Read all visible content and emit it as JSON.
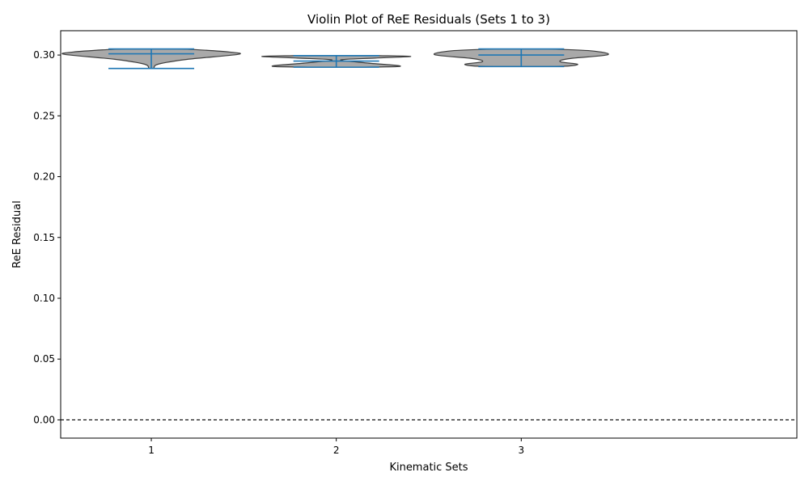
{
  "chart_data": {
    "type": "violin",
    "title": "Violin Plot of ReE Residuals (Sets 1 to 3)",
    "xlabel": "Kinematic Sets",
    "ylabel": "ReE Residual",
    "categories": [
      "1",
      "2",
      "3"
    ],
    "ylim": [
      -0.015,
      0.32
    ],
    "yticks": [
      "0.00",
      "0.05",
      "0.10",
      "0.15",
      "0.20",
      "0.25",
      "0.30"
    ],
    "reference_line": {
      "y": 0.0,
      "style": "dashed",
      "color": "#000000"
    },
    "violins": [
      {
        "category": "1",
        "min": 0.289,
        "max": 0.305,
        "mean": 0.301,
        "density": [
          [
            0.289,
            0.03
          ],
          [
            0.2925,
            0.08
          ],
          [
            0.2965,
            0.42
          ],
          [
            0.3005,
            1.0
          ],
          [
            0.3025,
            0.9
          ],
          [
            0.3045,
            0.5
          ],
          [
            0.305,
            0.3
          ]
        ]
      },
      {
        "category": "2",
        "min": 0.29,
        "max": 0.2995,
        "mean": 0.295,
        "density": [
          [
            0.29,
            0.3
          ],
          [
            0.2905,
            0.7
          ],
          [
            0.2915,
            0.69
          ],
          [
            0.2935,
            0.35
          ],
          [
            0.296,
            0.05
          ],
          [
            0.2975,
            0.45
          ],
          [
            0.2988,
            0.86
          ],
          [
            0.2995,
            0.5
          ]
        ]
      },
      {
        "category": "3",
        "min": 0.2905,
        "max": 0.305,
        "mean": 0.3,
        "density": [
          [
            0.2905,
            0.3
          ],
          [
            0.291,
            0.55
          ],
          [
            0.2925,
            0.65
          ],
          [
            0.2945,
            0.45
          ],
          [
            0.297,
            0.55
          ],
          [
            0.3003,
            1.0
          ],
          [
            0.3035,
            0.8
          ],
          [
            0.305,
            0.3
          ]
        ]
      }
    ],
    "colors": {
      "violin_fill": "#a9a9a9",
      "violin_edge": "#3d3d3d",
      "stats_lines": "#1f77b4"
    },
    "grid": false,
    "legend": "none"
  }
}
